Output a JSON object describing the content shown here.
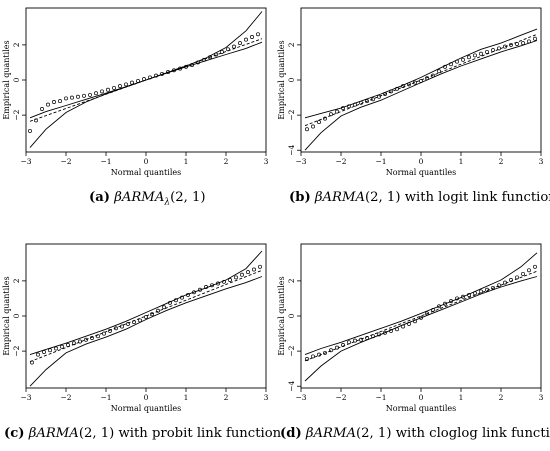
{
  "chart_data": [
    {
      "type": "scatter",
      "panel_label": "(a)",
      "caption_math": "βARMA",
      "caption_sub": "λ",
      "caption_args": "(2, 1)",
      "caption_rest": "",
      "xlabel": "Normal quantiles",
      "ylabel": "Empirical quantiles",
      "xlim": [
        -3,
        3
      ],
      "ylim": [
        -4.1,
        4.1
      ],
      "xticks": [
        -3,
        -2,
        -1,
        0,
        1,
        2,
        3
      ],
      "yticks": [
        -2,
        0,
        2
      ],
      "grid": false,
      "envelope_lower": [
        [
          -2.9,
          -3.85
        ],
        [
          -2.5,
          -2.8
        ],
        [
          -2.0,
          -1.85
        ],
        [
          -1.5,
          -1.25
        ],
        [
          -1.0,
          -0.8
        ],
        [
          -0.5,
          -0.4
        ],
        [
          0.0,
          0.0
        ],
        [
          0.5,
          0.38
        ],
        [
          1.0,
          0.75
        ],
        [
          1.5,
          1.1
        ],
        [
          2.0,
          1.45
        ],
        [
          2.5,
          1.8
        ],
        [
          2.9,
          2.15
        ]
      ],
      "envelope_upper": [
        [
          -2.9,
          -2.15
        ],
        [
          -2.5,
          -1.8
        ],
        [
          -2.0,
          -1.45
        ],
        [
          -1.5,
          -1.1
        ],
        [
          -1.0,
          -0.75
        ],
        [
          -0.5,
          -0.38
        ],
        [
          0.0,
          0.0
        ],
        [
          0.5,
          0.4
        ],
        [
          1.0,
          0.8
        ],
        [
          1.5,
          1.25
        ],
        [
          2.0,
          1.85
        ],
        [
          2.5,
          2.8
        ],
        [
          2.9,
          3.9
        ]
      ],
      "reference_line": [
        [
          -2.9,
          -2.35
        ],
        [
          2.9,
          2.35
        ]
      ],
      "points": [
        [
          -2.9,
          -2.9
        ],
        [
          -2.75,
          -2.3
        ],
        [
          -2.6,
          -1.65
        ],
        [
          -2.45,
          -1.4
        ],
        [
          -2.3,
          -1.25
        ],
        [
          -2.15,
          -1.2
        ],
        [
          -2.0,
          -1.05
        ],
        [
          -1.85,
          -1.0
        ],
        [
          -1.7,
          -0.95
        ],
        [
          -1.55,
          -0.9
        ],
        [
          -1.4,
          -0.85
        ],
        [
          -1.25,
          -0.75
        ],
        [
          -1.1,
          -0.65
        ],
        [
          -0.95,
          -0.55
        ],
        [
          -0.8,
          -0.45
        ],
        [
          -0.65,
          -0.35
        ],
        [
          -0.5,
          -0.25
        ],
        [
          -0.35,
          -0.15
        ],
        [
          -0.2,
          -0.05
        ],
        [
          -0.05,
          0.05
        ],
        [
          0.1,
          0.15
        ],
        [
          0.25,
          0.25
        ],
        [
          0.4,
          0.35
        ],
        [
          0.55,
          0.45
        ],
        [
          0.7,
          0.55
        ],
        [
          0.85,
          0.65
        ],
        [
          1.0,
          0.75
        ],
        [
          1.15,
          0.85
        ],
        [
          1.3,
          1.0
        ],
        [
          1.45,
          1.15
        ],
        [
          1.6,
          1.3
        ],
        [
          1.75,
          1.45
        ],
        [
          1.9,
          1.6
        ],
        [
          2.05,
          1.75
        ],
        [
          2.2,
          1.9
        ],
        [
          2.35,
          2.1
        ],
        [
          2.5,
          2.3
        ],
        [
          2.65,
          2.45
        ],
        [
          2.8,
          2.6
        ]
      ]
    },
    {
      "type": "scatter",
      "panel_label": "(b)",
      "caption_math": "βARMA",
      "caption_sub": "",
      "caption_args": "(2, 1)",
      "caption_rest": "with logit link function",
      "xlabel": "Normal quantiles",
      "ylabel": "Empirical quantiles",
      "xlim": [
        -3,
        3
      ],
      "ylim": [
        -4.1,
        4.1
      ],
      "xticks": [
        -3,
        -2,
        -1,
        0,
        1,
        2,
        3
      ],
      "yticks": [
        -4,
        -2,
        0,
        2
      ],
      "grid": false,
      "envelope_lower": [
        [
          -2.9,
          -4.0
        ],
        [
          -2.5,
          -3.0
        ],
        [
          -2.0,
          -2.05
        ],
        [
          -1.5,
          -1.55
        ],
        [
          -1.0,
          -1.15
        ],
        [
          -0.5,
          -0.65
        ],
        [
          0.0,
          -0.15
        ],
        [
          0.5,
          0.35
        ],
        [
          1.0,
          0.8
        ],
        [
          1.5,
          1.2
        ],
        [
          2.0,
          1.6
        ],
        [
          2.5,
          1.95
        ],
        [
          2.9,
          2.25
        ]
      ],
      "envelope_upper": [
        [
          -2.9,
          -2.15
        ],
        [
          -2.5,
          -1.9
        ],
        [
          -2.0,
          -1.6
        ],
        [
          -1.5,
          -1.2
        ],
        [
          -1.0,
          -0.8
        ],
        [
          -0.5,
          -0.35
        ],
        [
          0.0,
          0.15
        ],
        [
          0.5,
          0.7
        ],
        [
          1.0,
          1.25
        ],
        [
          1.5,
          1.75
        ],
        [
          2.0,
          2.1
        ],
        [
          2.5,
          2.55
        ],
        [
          2.9,
          2.9
        ]
      ],
      "reference_line": [
        [
          -2.9,
          -2.6
        ],
        [
          2.9,
          2.6
        ]
      ],
      "points": [
        [
          -2.85,
          -2.8
        ],
        [
          -2.7,
          -2.65
        ],
        [
          -2.55,
          -2.4
        ],
        [
          -2.4,
          -2.2
        ],
        [
          -2.25,
          -1.95
        ],
        [
          -2.1,
          -1.8
        ],
        [
          -1.95,
          -1.6
        ],
        [
          -1.8,
          -1.5
        ],
        [
          -1.65,
          -1.4
        ],
        [
          -1.5,
          -1.3
        ],
        [
          -1.35,
          -1.2
        ],
        [
          -1.2,
          -1.1
        ],
        [
          -1.05,
          -0.95
        ],
        [
          -0.9,
          -0.8
        ],
        [
          -0.75,
          -0.65
        ],
        [
          -0.6,
          -0.5
        ],
        [
          -0.45,
          -0.35
        ],
        [
          -0.3,
          -0.25
        ],
        [
          -0.15,
          -0.15
        ],
        [
          0.0,
          -0.05
        ],
        [
          0.15,
          0.1
        ],
        [
          0.3,
          0.25
        ],
        [
          0.45,
          0.5
        ],
        [
          0.6,
          0.75
        ],
        [
          0.75,
          0.9
        ],
        [
          0.9,
          1.05
        ],
        [
          1.05,
          1.15
        ],
        [
          1.2,
          1.3
        ],
        [
          1.35,
          1.4
        ],
        [
          1.5,
          1.5
        ],
        [
          1.65,
          1.6
        ],
        [
          1.8,
          1.7
        ],
        [
          1.95,
          1.8
        ],
        [
          2.1,
          1.9
        ],
        [
          2.25,
          2.0
        ],
        [
          2.4,
          2.05
        ],
        [
          2.55,
          2.1
        ],
        [
          2.7,
          2.2
        ],
        [
          2.85,
          2.35
        ]
      ]
    },
    {
      "type": "scatter",
      "panel_label": "(c)",
      "caption_math": "βARMA",
      "caption_sub": "",
      "caption_args": "(2, 1)",
      "caption_rest": "with probit link function",
      "xlabel": "Normal quantiles",
      "ylabel": "Empirical quantiles",
      "xlim": [
        -3,
        3
      ],
      "ylim": [
        -4.1,
        4.1
      ],
      "xticks": [
        -3,
        -2,
        -1,
        0,
        1,
        2,
        3
      ],
      "yticks": [
        -2,
        0,
        2
      ],
      "grid": false,
      "envelope_lower": [
        [
          -2.9,
          -4.0
        ],
        [
          -2.5,
          -3.05
        ],
        [
          -2.0,
          -2.1
        ],
        [
          -1.5,
          -1.6
        ],
        [
          -1.0,
          -1.2
        ],
        [
          -0.5,
          -0.75
        ],
        [
          0.0,
          -0.2
        ],
        [
          0.5,
          0.3
        ],
        [
          1.0,
          0.75
        ],
        [
          1.5,
          1.15
        ],
        [
          2.0,
          1.55
        ],
        [
          2.5,
          1.9
        ],
        [
          2.9,
          2.25
        ]
      ],
      "envelope_upper": [
        [
          -2.9,
          -2.2
        ],
        [
          -2.5,
          -1.9
        ],
        [
          -2.0,
          -1.55
        ],
        [
          -1.5,
          -1.15
        ],
        [
          -1.0,
          -0.75
        ],
        [
          -0.5,
          -0.3
        ],
        [
          0.0,
          0.2
        ],
        [
          0.5,
          0.7
        ],
        [
          1.0,
          1.2
        ],
        [
          1.5,
          1.6
        ],
        [
          2.0,
          2.05
        ],
        [
          2.5,
          2.7
        ],
        [
          2.9,
          3.7
        ]
      ],
      "reference_line": [
        [
          -2.9,
          -2.6
        ],
        [
          2.9,
          2.6
        ]
      ],
      "points": [
        [
          -2.85,
          -2.65
        ],
        [
          -2.7,
          -2.2
        ],
        [
          -2.55,
          -2.05
        ],
        [
          -2.4,
          -1.95
        ],
        [
          -2.25,
          -1.85
        ],
        [
          -2.1,
          -1.75
        ],
        [
          -1.95,
          -1.65
        ],
        [
          -1.8,
          -1.55
        ],
        [
          -1.65,
          -1.45
        ],
        [
          -1.5,
          -1.35
        ],
        [
          -1.35,
          -1.25
        ],
        [
          -1.2,
          -1.15
        ],
        [
          -1.05,
          -1.0
        ],
        [
          -0.9,
          -0.85
        ],
        [
          -0.75,
          -0.7
        ],
        [
          -0.6,
          -0.6
        ],
        [
          -0.45,
          -0.45
        ],
        [
          -0.3,
          -0.35
        ],
        [
          -0.15,
          -0.25
        ],
        [
          0.0,
          -0.05
        ],
        [
          0.15,
          0.1
        ],
        [
          0.3,
          0.3
        ],
        [
          0.45,
          0.5
        ],
        [
          0.6,
          0.75
        ],
        [
          0.75,
          0.9
        ],
        [
          0.9,
          1.05
        ],
        [
          1.05,
          1.2
        ],
        [
          1.2,
          1.35
        ],
        [
          1.35,
          1.5
        ],
        [
          1.5,
          1.65
        ],
        [
          1.65,
          1.75
        ],
        [
          1.8,
          1.85
        ],
        [
          1.95,
          1.95
        ],
        [
          2.1,
          2.05
        ],
        [
          2.25,
          2.2
        ],
        [
          2.4,
          2.35
        ],
        [
          2.55,
          2.5
        ],
        [
          2.7,
          2.65
        ],
        [
          2.85,
          2.8
        ]
      ]
    },
    {
      "type": "scatter",
      "panel_label": "(d)",
      "caption_math": "βARMA",
      "caption_sub": "",
      "caption_args": "(2, 1)",
      "caption_rest": "with cloglog link function",
      "xlabel": "Normal quantiles",
      "ylabel": "Empirical quantiles",
      "xlim": [
        -3,
        3
      ],
      "ylim": [
        -4.1,
        4.1
      ],
      "xticks": [
        -3,
        -2,
        -1,
        0,
        1,
        2,
        3
      ],
      "yticks": [
        -4,
        -2,
        0,
        2
      ],
      "grid": false,
      "envelope_lower": [
        [
          -2.9,
          -3.7
        ],
        [
          -2.5,
          -2.85
        ],
        [
          -2.0,
          -2.0
        ],
        [
          -1.5,
          -1.5
        ],
        [
          -1.0,
          -1.05
        ],
        [
          -0.5,
          -0.55
        ],
        [
          0.0,
          -0.1
        ],
        [
          0.5,
          0.35
        ],
        [
          1.0,
          0.8
        ],
        [
          1.5,
          1.25
        ],
        [
          2.0,
          1.65
        ],
        [
          2.5,
          2.0
        ],
        [
          2.9,
          2.25
        ]
      ],
      "envelope_upper": [
        [
          -2.9,
          -2.2
        ],
        [
          -2.5,
          -1.85
        ],
        [
          -2.0,
          -1.5
        ],
        [
          -1.5,
          -1.1
        ],
        [
          -1.0,
          -0.7
        ],
        [
          -0.5,
          -0.3
        ],
        [
          0.0,
          0.15
        ],
        [
          0.5,
          0.6
        ],
        [
          1.0,
          1.05
        ],
        [
          1.5,
          1.55
        ],
        [
          2.0,
          2.05
        ],
        [
          2.5,
          2.8
        ],
        [
          2.9,
          3.6
        ]
      ],
      "reference_line": [
        [
          -2.9,
          -2.55
        ],
        [
          2.9,
          2.55
        ]
      ],
      "points": [
        [
          -2.85,
          -2.45
        ],
        [
          -2.7,
          -2.3
        ],
        [
          -2.55,
          -2.2
        ],
        [
          -2.4,
          -2.1
        ],
        [
          -2.25,
          -1.95
        ],
        [
          -2.1,
          -1.8
        ],
        [
          -1.95,
          -1.65
        ],
        [
          -1.8,
          -1.5
        ],
        [
          -1.65,
          -1.4
        ],
        [
          -1.5,
          -1.35
        ],
        [
          -1.35,
          -1.25
        ],
        [
          -1.2,
          -1.15
        ],
        [
          -1.05,
          -1.05
        ],
        [
          -0.9,
          -0.95
        ],
        [
          -0.75,
          -0.85
        ],
        [
          -0.6,
          -0.75
        ],
        [
          -0.45,
          -0.6
        ],
        [
          -0.3,
          -0.45
        ],
        [
          -0.15,
          -0.3
        ],
        [
          0.0,
          -0.1
        ],
        [
          0.15,
          0.15
        ],
        [
          0.3,
          0.35
        ],
        [
          0.45,
          0.55
        ],
        [
          0.6,
          0.7
        ],
        [
          0.75,
          0.85
        ],
        [
          0.9,
          1.0
        ],
        [
          1.05,
          1.1
        ],
        [
          1.2,
          1.2
        ],
        [
          1.35,
          1.3
        ],
        [
          1.5,
          1.4
        ],
        [
          1.65,
          1.5
        ],
        [
          1.8,
          1.6
        ],
        [
          1.95,
          1.75
        ],
        [
          2.1,
          1.9
        ],
        [
          2.25,
          2.05
        ],
        [
          2.4,
          2.2
        ],
        [
          2.55,
          2.4
        ],
        [
          2.7,
          2.6
        ],
        [
          2.85,
          2.8
        ]
      ]
    }
  ]
}
